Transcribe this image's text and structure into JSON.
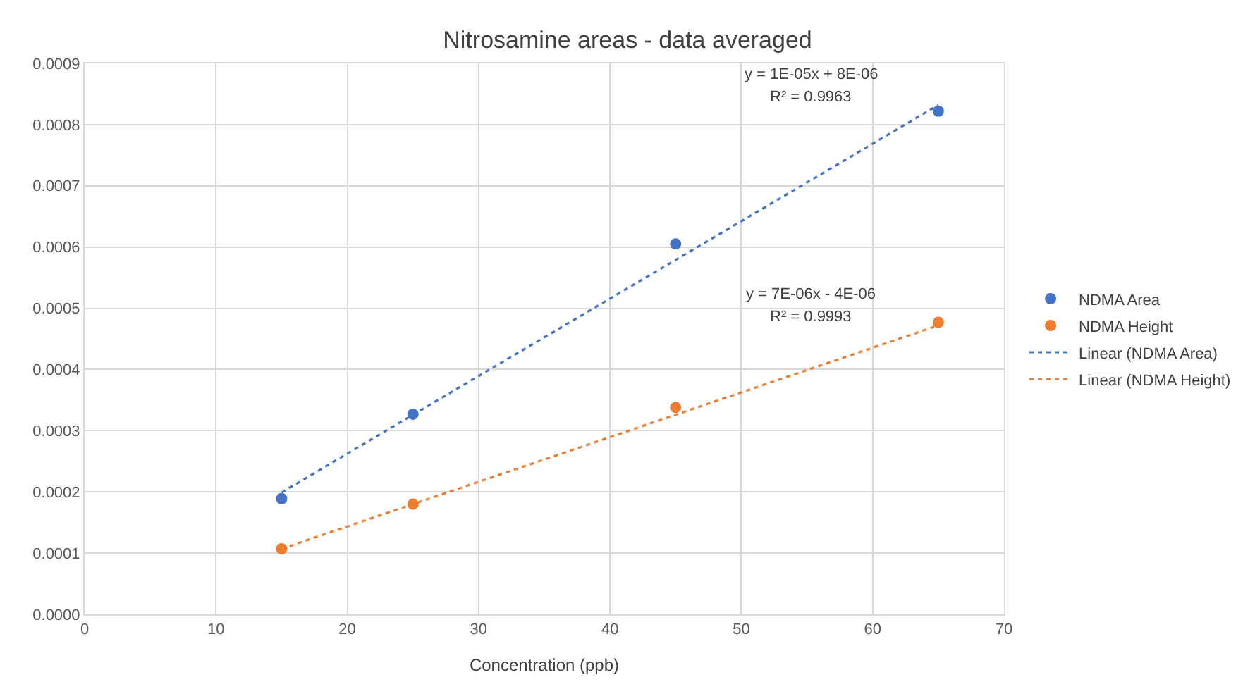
{
  "chart_data": {
    "type": "scatter",
    "title": "Nitrosamine areas - data averaged",
    "xlabel": "Concentration (ppb)",
    "x": [
      15,
      25,
      45,
      65
    ],
    "series": [
      {
        "name": "NDMA Area",
        "color": "#4472c4",
        "marker": "circle",
        "values": [
          0.000189,
          0.000327,
          0.000605,
          0.000822
        ]
      },
      {
        "name": "NDMA Height",
        "color": "#ed7d31",
        "marker": "circle",
        "values": [
          0.000107,
          0.00018,
          0.000338,
          0.000477
        ]
      },
      {
        "name": "Linear (NDMA Area)",
        "color": "#4472c4",
        "type": "line",
        "marker": "none",
        "line_style": "dotted",
        "values": [
          0.000199,
          0.000326,
          0.000579,
          0.000832
        ]
      },
      {
        "name": "Linear (NDMA Height)",
        "color": "#ed7d31",
        "type": "line",
        "marker": "none",
        "line_style": "dotted",
        "values": [
          0.000107,
          0.00018,
          0.000326,
          0.000472
        ]
      }
    ],
    "annotations": [
      "y = 1E-05x + 8E-06",
      "R² = 0.9963",
      "y = 7E-06x - 4E-06",
      "R² = 0.9993"
    ],
    "xlim": [
      0,
      70
    ],
    "xticks": [
      0,
      10,
      20,
      30,
      40,
      50,
      60,
      70
    ],
    "ylim": [
      0,
      0.0009
    ],
    "yticks": [
      {
        "value": 0,
        "label": "0.0000"
      },
      {
        "value": 0.0001,
        "label": "0.0001"
      },
      {
        "value": 0.0002,
        "label": "0.0002"
      },
      {
        "value": 0.0003,
        "label": "0.0003"
      },
      {
        "value": 0.0004,
        "label": "0.0004"
      },
      {
        "value": 0.0005,
        "label": "0.0005"
      },
      {
        "value": 0.0006,
        "label": "0.0006"
      },
      {
        "value": 0.0007,
        "label": "0.0007"
      },
      {
        "value": 0.0008,
        "label": "0.0008"
      },
      {
        "value": 0.0009,
        "label": "0.0009"
      }
    ],
    "grid": true,
    "legend": "right"
  }
}
